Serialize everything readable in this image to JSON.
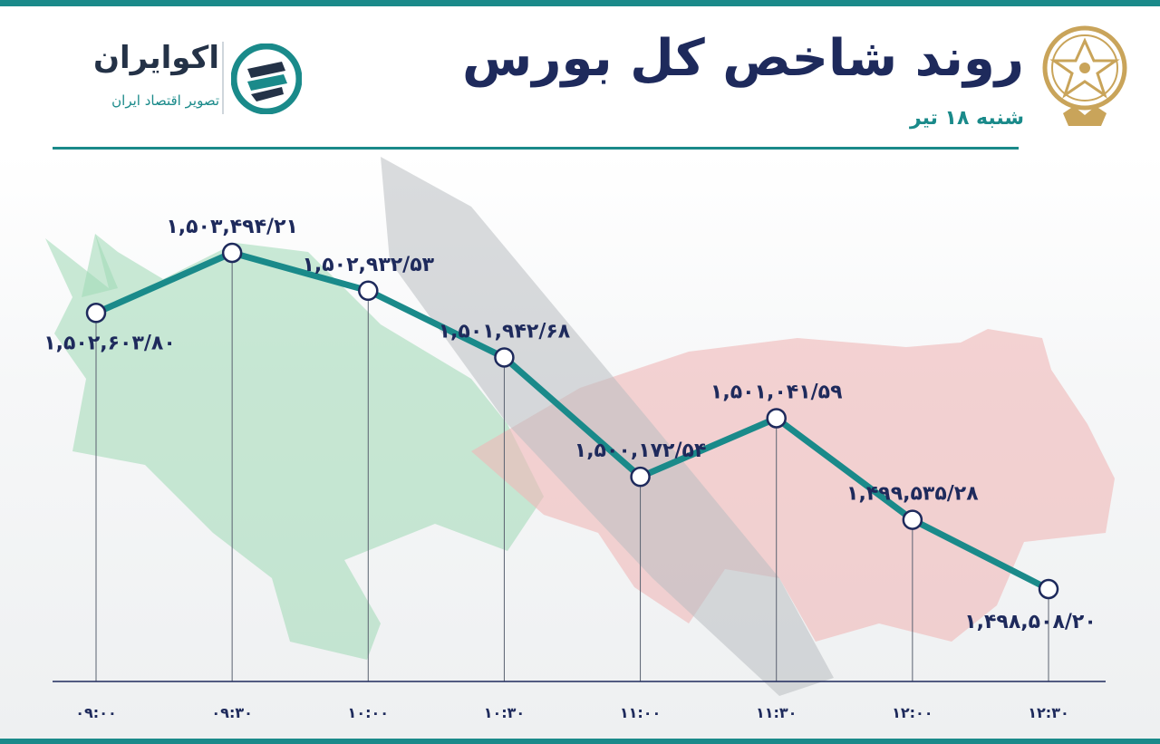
{
  "header": {
    "title": "روند شاخص کل بورس",
    "date": "شنبه ۱۸ تیر"
  },
  "brand": {
    "name": "اکوایران",
    "tagline": "تصویر اقتصاد ایران"
  },
  "colors": {
    "accent": "#1a8a8a",
    "line": "#1a8a8a",
    "text_dark": "#1e2a5c",
    "bull_green": "#9fd8b4",
    "bear_red": "#f0b7b7",
    "emblem_gold": "#c9a45a"
  },
  "chart_data": {
    "type": "line",
    "title": "روند شاخص کل بورس",
    "categories": [
      "۰۹:۰۰",
      "۰۹:۳۰",
      "۱۰:۰۰",
      "۱۰:۳۰",
      "۱۱:۰۰",
      "۱۱:۳۰",
      "۱۲:۰۰",
      "۱۲:۳۰"
    ],
    "values": [
      1502603.8,
      1503494.21,
      1502932.53,
      1501942.68,
      1500172.54,
      1501041.59,
      1499535.28,
      1498508.2
    ],
    "labels": [
      "۱,۵۰۲,۶۰۳/۸۰",
      "۱,۵۰۳,۴۹۴/۲۱",
      "۱,۵۰۲,۹۳۲/۵۳",
      "۱,۵۰۱,۹۴۲/۶۸",
      "۱,۵۰۰,۱۷۲/۵۴",
      "۱,۵۰۱,۰۴۱/۵۹",
      "۱,۴۹۹,۵۳۵/۲۸",
      "۱,۴۹۸,۵۰۸/۲۰"
    ],
    "grid": false,
    "legend": "none"
  }
}
